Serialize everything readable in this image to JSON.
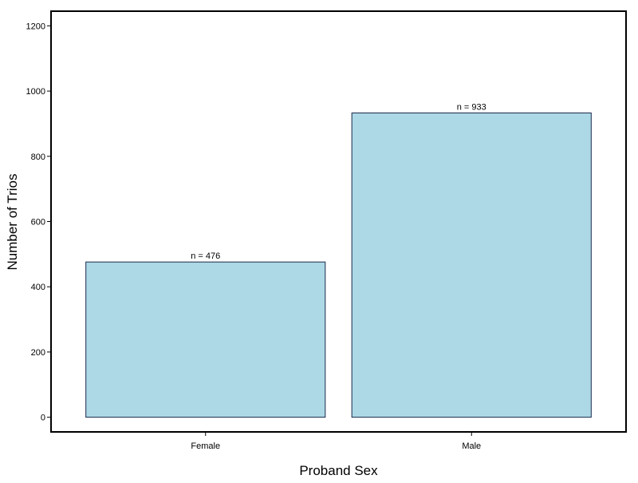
{
  "chart_data": {
    "type": "bar",
    "title": "",
    "xlabel": "Proband Sex",
    "ylabel": "Number of Trios",
    "categories": [
      "Female",
      "Male"
    ],
    "values": [
      476,
      933
    ],
    "data_labels": [
      "n = 476",
      "n = 933"
    ],
    "ylim": [
      -45,
      1245
    ],
    "yticks": [
      0,
      200,
      400,
      600,
      800,
      1000,
      1200
    ],
    "ytick_labels": [
      "0",
      "200",
      "400",
      "600",
      "800",
      "1000",
      "1200"
    ],
    "grid": false,
    "legend": "none",
    "colors": {
      "bar_fill": "#add8e6",
      "bar_stroke": "#1a2a4a",
      "frame": "#000000"
    }
  }
}
